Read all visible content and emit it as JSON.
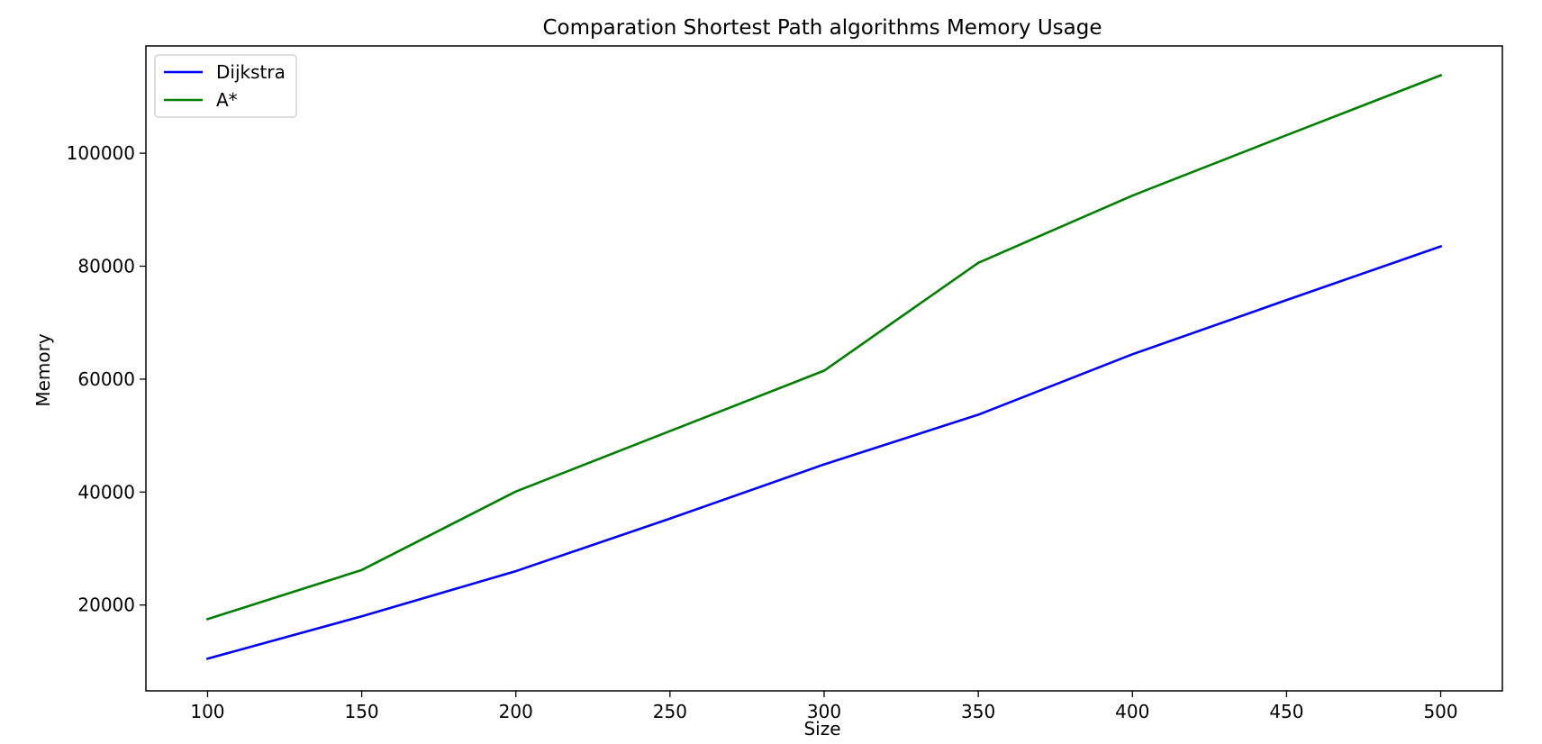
{
  "chart_data": {
    "type": "line",
    "title": "Comparation Shortest Path algorithms Memory Usage",
    "xlabel": "Size",
    "ylabel": "Memory",
    "x": [
      100,
      150,
      200,
      250,
      300,
      350,
      400,
      450,
      500
    ],
    "xticks": [
      100,
      150,
      200,
      250,
      300,
      350,
      400,
      450,
      500
    ],
    "yticks": [
      20000,
      40000,
      60000,
      80000,
      100000
    ],
    "xlim": [
      80,
      520
    ],
    "ylim": [
      4800,
      119000
    ],
    "grid": false,
    "legend_position": "top-left",
    "series": [
      {
        "name": "Dijkstra",
        "color": "#0000ff",
        "values": [
          10500,
          18000,
          26000,
          35300,
          44900,
          53700,
          64400,
          74000,
          83500
        ]
      },
      {
        "name": "A*",
        "color": "#008000",
        "values": [
          17500,
          26200,
          40100,
          50800,
          61500,
          80600,
          92500,
          103200,
          113800
        ]
      }
    ]
  }
}
